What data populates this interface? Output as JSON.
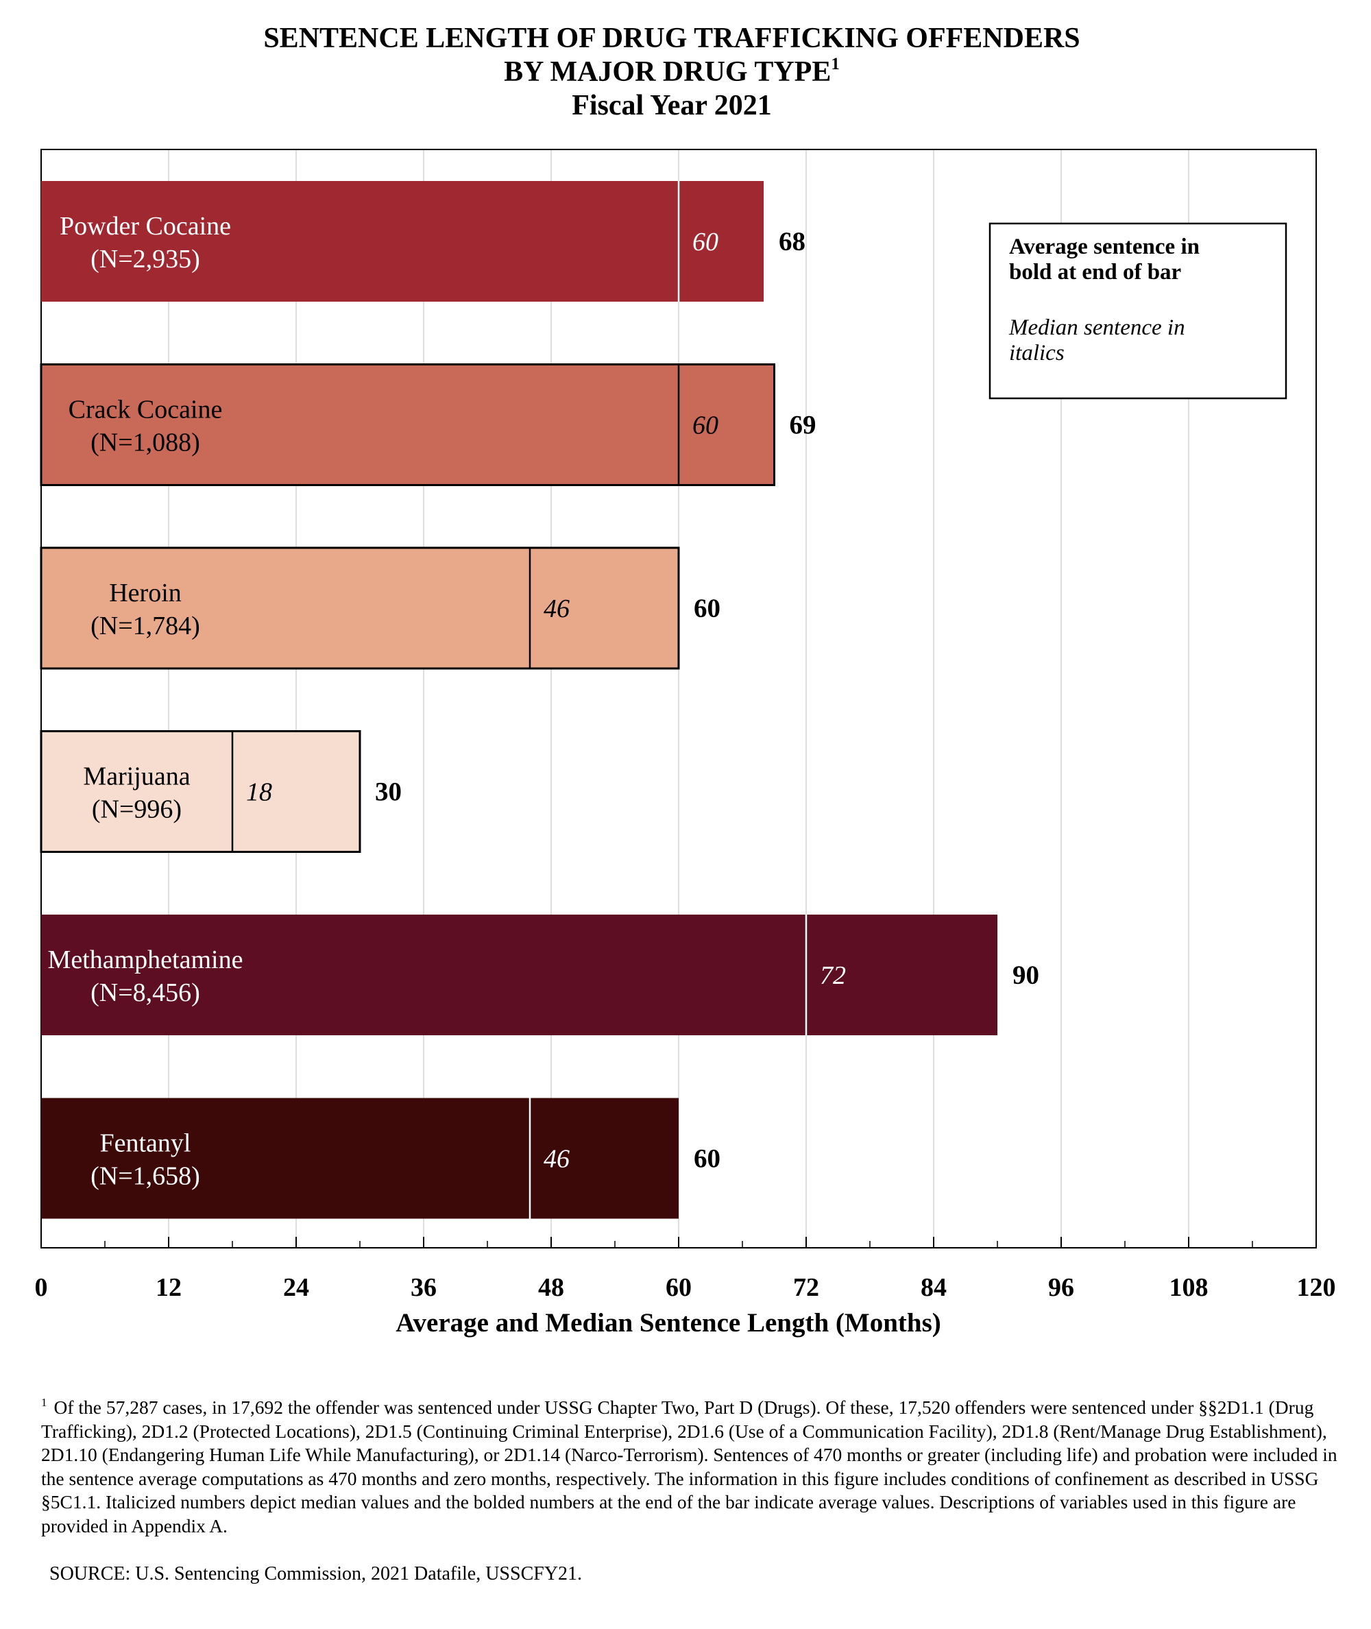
{
  "chart_data": {
    "type": "bar",
    "orientation": "horizontal",
    "title_lines": [
      "SENTENCE LENGTH OF DRUG TRAFFICKING OFFENDERS",
      "BY MAJOR DRUG TYPE",
      "Fiscal Year 2021"
    ],
    "title_superscript": "1",
    "xlabel": "Average and Median Sentence Length (Months)",
    "xlim": [
      0,
      120
    ],
    "xticks": [
      "0",
      "12",
      "24",
      "36",
      "48",
      "60",
      "72",
      "84",
      "96",
      "108",
      "120"
    ],
    "grid": "vertical",
    "categories": [
      {
        "name": "Powder Cocaine",
        "n": "(N=2,935)",
        "average": 68,
        "median": 60,
        "color": "#A02830",
        "text_color": "#ffffff",
        "outlined": false,
        "median_line": "#ffffff"
      },
      {
        "name": "Crack Cocaine",
        "n": "(N=1,088)",
        "average": 69,
        "median": 60,
        "color": "#C96A58",
        "text_color": "#000000",
        "outlined": true,
        "median_line": "#000000"
      },
      {
        "name": "Heroin",
        "n": "(N=1,784)",
        "average": 60,
        "median": 46,
        "color": "#E8A88A",
        "text_color": "#000000",
        "outlined": true,
        "median_line": "#000000"
      },
      {
        "name": "Marijuana",
        "n": "(N=996)",
        "average": 30,
        "median": 18,
        "color": "#F6DDCF",
        "text_color": "#000000",
        "outlined": true,
        "median_line": "#000000"
      },
      {
        "name": "Methamphetamine",
        "n": "(N=8,456)",
        "average": 90,
        "median": 72,
        "color": "#5E0E22",
        "text_color": "#ffffff",
        "outlined": false,
        "median_line": "#ffffff"
      },
      {
        "name": "Fentanyl",
        "n": "(N=1,658)",
        "average": 60,
        "median": 46,
        "color": "#3D0808",
        "text_color": "#ffffff",
        "outlined": false,
        "median_line": "#ffffff"
      }
    ],
    "legend": {
      "placement": "top-right",
      "line1": "Average sentence in",
      "line2": "bold at end of bar",
      "line3": "Median sentence in",
      "line4": "italics"
    }
  },
  "footnote": {
    "marker": "1",
    "text": "Of the 57,287 cases, in 17,692 the offender was sentenced under USSG Chapter Two, Part D (Drugs). Of these, 17,520 offenders were sentenced under §§2D1.1 (Drug Trafficking), 2D1.2 (Protected Locations), 2D1.5 (Continuing Criminal Enterprise), 2D1.6 (Use of a Communication Facility), 2D1.8 (Rent/Manage Drug Establishment), 2D1.10 (Endangering Human Life While Manufacturing), or 2D1.14 (Narco-Terrorism). Sentences of 470 months or greater (including life) and probation were included in the sentence average computations as 470 months and zero months, respectively. The information in this figure includes conditions of confinement as described in USSG §5C1.1. Italicized numbers depict median values and the bolded numbers at the end of the bar indicate average values. Descriptions of variables used in this figure are provided in Appendix A."
  },
  "source": "SOURCE: U.S. Sentencing Commission, 2021 Datafile, USSCFY21."
}
